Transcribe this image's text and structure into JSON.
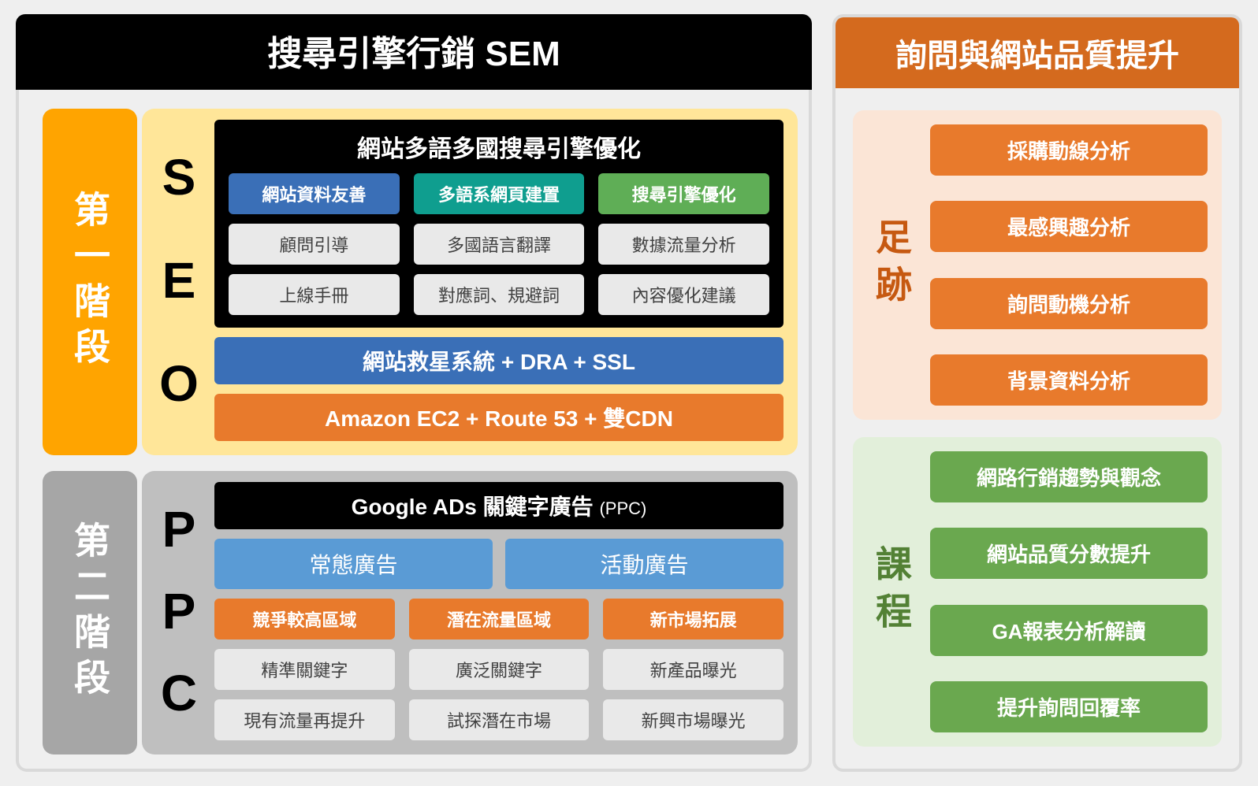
{
  "colors": {
    "sem_header_bg": "#000000",
    "quality_header_bg": "#d46a1e",
    "phase1_bg": "#ffa400",
    "phase2_bg": "#a6a6a6",
    "seo_body_bg": "#ffe699",
    "ppc_body_bg": "#bfbfbf",
    "seo_title_bg": "#000000",
    "cell_blue": "#3a6fb7",
    "cell_teal": "#0f9e8f",
    "cell_green": "#5fae56",
    "cell_gray": "#e9e9e9",
    "bar_blue": "#3a6fb7",
    "bar_orange": "#e87a2c",
    "ppc_blue": "#5a9bd5",
    "orange_item": "#e87a2c",
    "green_item": "#6aa84f",
    "group_orange_bg": "#fbe5d6",
    "group_green_bg": "#e2efda",
    "orange_label_text": "#c65911",
    "green_label_text": "#538135"
  },
  "fontsize": {
    "main_header": 44,
    "sub_header": 40,
    "phase_label": 46,
    "acronym": 64,
    "section_title": 30,
    "cell": 22,
    "bar": 28,
    "group_label": 46,
    "group_item": 26
  },
  "left": {
    "header": "搜尋引擎行銷 SEM",
    "phase1": {
      "label": "第一階段",
      "acronym": [
        "S",
        "E",
        "O"
      ],
      "seo_title": "網站多語多國搜尋引擎優化",
      "grid": [
        {
          "text": "網站資料友善",
          "bg": "#3a6fb7",
          "fg": "#ffffff"
        },
        {
          "text": "多語系網頁建置",
          "bg": "#0f9e8f",
          "fg": "#ffffff"
        },
        {
          "text": "搜尋引擎優化",
          "bg": "#5fae56",
          "fg": "#ffffff"
        },
        {
          "text": "顧問引導",
          "bg": "#e9e9e9",
          "fg": "#404040"
        },
        {
          "text": "多國語言翻譯",
          "bg": "#e9e9e9",
          "fg": "#404040"
        },
        {
          "text": "數據流量分析",
          "bg": "#e9e9e9",
          "fg": "#404040"
        },
        {
          "text": "上線手冊",
          "bg": "#e9e9e9",
          "fg": "#404040"
        },
        {
          "text": "對應詞、規避詞",
          "bg": "#e9e9e9",
          "fg": "#404040"
        },
        {
          "text": "內容優化建議",
          "bg": "#e9e9e9",
          "fg": "#404040"
        }
      ],
      "bars": [
        {
          "text": "網站救星系統 + DRA + SSL",
          "bg": "#3a6fb7"
        },
        {
          "text": "Amazon EC2 + Route 53 + 雙CDN",
          "bg": "#e87a2c"
        }
      ]
    },
    "phase2": {
      "label": "第二階段",
      "acronym": [
        "P",
        "P",
        "C"
      ],
      "title_main": "Google ADs 關鍵字廣告 ",
      "title_sub": "(PPC)",
      "blue_tabs": [
        {
          "text": "常態廣告",
          "bg": "#5a9bd5"
        },
        {
          "text": "活動廣告",
          "bg": "#5a9bd5"
        }
      ],
      "grid": [
        {
          "text": "競爭較高區域",
          "bg": "#e87a2c",
          "fg": "#ffffff"
        },
        {
          "text": "潛在流量區域",
          "bg": "#e87a2c",
          "fg": "#ffffff"
        },
        {
          "text": "新市場拓展",
          "bg": "#e87a2c",
          "fg": "#ffffff"
        },
        {
          "text": "精準關鍵字",
          "bg": "#e9e9e9",
          "fg": "#404040"
        },
        {
          "text": "廣泛關鍵字",
          "bg": "#e9e9e9",
          "fg": "#404040"
        },
        {
          "text": "新產品曝光",
          "bg": "#e9e9e9",
          "fg": "#404040"
        },
        {
          "text": "現有流量再提升",
          "bg": "#e9e9e9",
          "fg": "#404040"
        },
        {
          "text": "試探潛在市場",
          "bg": "#e9e9e9",
          "fg": "#404040"
        },
        {
          "text": "新興市場曝光",
          "bg": "#e9e9e9",
          "fg": "#404040"
        }
      ]
    }
  },
  "right": {
    "header": "詢問與網站品質提升",
    "groups": [
      {
        "label": "足跡",
        "style": "orange",
        "items": [
          "採購動線分析",
          "最感興趣分析",
          "詢問動機分析",
          "背景資料分析"
        ]
      },
      {
        "label": "課程",
        "style": "green",
        "items": [
          "網路行銷趨勢與觀念",
          "網站品質分數提升",
          "GA報表分析解讀",
          "提升詢問回覆率"
        ]
      }
    ]
  }
}
